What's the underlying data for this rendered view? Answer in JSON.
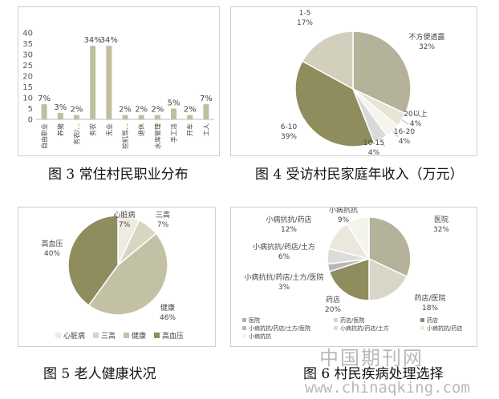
{
  "captions": {
    "fig3": "图 3 常住村民职业分布",
    "fig4": "图 4 受访村民家庭年收入（万元）",
    "fig5": "图 5 老人健康状况",
    "fig6": "图 6 村民疾病处理选择"
  },
  "watermark": {
    "cn": "中国期刊网",
    "url": "www.chinaqking.com"
  },
  "chart_data": [
    {
      "id": "fig3",
      "type": "bar",
      "categories": [
        "自由职业",
        "养猪",
        "务农/…",
        "务农",
        "无业",
        "挖机驾…",
        "退休",
        "水库管理",
        "手工活",
        "开车",
        "工人"
      ],
      "values": [
        7,
        3,
        2,
        34,
        34,
        2,
        2,
        2,
        5,
        2,
        7
      ],
      "data_labels": [
        "7%",
        "3%",
        "2%",
        "34%",
        "34%",
        "2%",
        "2%",
        "2%",
        "5%",
        "2%",
        "7%"
      ],
      "ylim": [
        0,
        40
      ],
      "yticks": [
        0,
        5,
        10,
        15,
        20,
        25,
        30,
        35,
        40
      ],
      "color": "#bfbf9f"
    },
    {
      "id": "fig4",
      "type": "pie",
      "slices": [
        {
          "label": "不方便透露",
          "pct": "32%",
          "value": 32,
          "color": "#b5b29a"
        },
        {
          "label": "20以上",
          "pct": "4%",
          "value": 4,
          "color": "#e6e4d4"
        },
        {
          "label": "16-20",
          "pct": "4%",
          "value": 4,
          "color": "#f4f3ec"
        },
        {
          "label": "10-15",
          "pct": "4%",
          "value": 4,
          "color": "#d9d9d9"
        },
        {
          "label": "6-10",
          "pct": "39%",
          "value": 39,
          "color": "#8f8d5e"
        },
        {
          "label": "1-5",
          "pct": "17%",
          "value": 17,
          "color": "#d2d0bd"
        }
      ]
    },
    {
      "id": "fig5",
      "type": "pie",
      "slices": [
        {
          "label": "心脏病",
          "pct": "7%",
          "value": 7,
          "color": "#eeece0"
        },
        {
          "label": "三高",
          "pct": "7%",
          "value": 7,
          "color": "#d8d6c2"
        },
        {
          "label": "健康",
          "pct": "46%",
          "value": 46,
          "color": "#c3c1a5"
        },
        {
          "label": "高血压",
          "pct": "40%",
          "value": 40,
          "color": "#8f8d5e"
        }
      ],
      "legend": [
        "心脏病",
        "三高",
        "健康",
        "高血压"
      ]
    },
    {
      "id": "fig6",
      "type": "pie",
      "slices": [
        {
          "label": "医院",
          "pct": "32%",
          "value": 32,
          "color": "#b5b29a"
        },
        {
          "label": "药店/医院",
          "pct": "18%",
          "value": 18,
          "color": "#d8d6c6"
        },
        {
          "label": "药店",
          "pct": "20%",
          "value": 20,
          "color": "#8f8d5e"
        },
        {
          "label": "小病抗抗/药店/土方/医院",
          "pct": "3%",
          "value": 3,
          "color": "#b8b8b8"
        },
        {
          "label": "小病抗抗/药店/土方",
          "pct": "6%",
          "value": 6,
          "color": "#dcdcdc"
        },
        {
          "label": "小病抗抗/药店",
          "pct": "12%",
          "value": 12,
          "color": "#eae8dc"
        },
        {
          "label": "小病抗抗",
          "pct": "9%",
          "value": 9,
          "color": "#f4f3ec"
        }
      ],
      "legend": [
        "医院",
        "药店/医院",
        "药店",
        "小病抗抗/药店/土方/医院",
        "小病抗抗/药店/土方",
        "小病抗抗/药店",
        "小病抗抗"
      ]
    }
  ]
}
